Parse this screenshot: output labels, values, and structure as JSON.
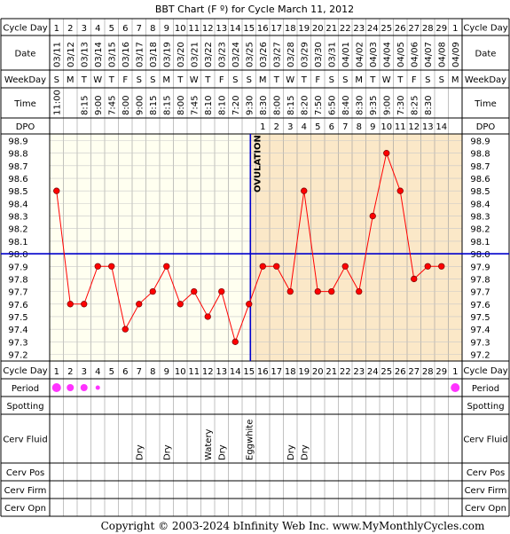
{
  "title": "BBT Chart (F º) for Cycle March 11, 2012",
  "footer": "Copyright © 2003-2024 bInfinity Web Inc.     www.MyMonthlyCycles.com",
  "row_labels": {
    "cycle_day": "Cycle Day",
    "date": "Date",
    "weekday": "WeekDay",
    "time": "Time",
    "dpo": "DPO",
    "period": "Period",
    "spotting": "Spotting",
    "cerv_fluid": "Cerv Fluid",
    "cerv_pos": "Cerv Pos",
    "cerv_firm": "Cerv Firm",
    "cerv_opn": "Cerv Opn"
  },
  "ovulation_label": "OVULATION",
  "colors": {
    "line": "#ff0000",
    "coverline": "#0000cc",
    "ovulation_line": "#0000cc",
    "pre_ovulation_bg": "#fffff0",
    "post_ovulation_bg": "#fbe8c8",
    "period_dot": "#ff33ff",
    "border": "#000000"
  },
  "chart_data": {
    "type": "line",
    "title": "BBT Chart (F º) for Cycle March 11, 2012",
    "ylim": [
      97.2,
      98.9
    ],
    "y_ticks": [
      "98.9",
      "98.8",
      "98.7",
      "98.6",
      "98.5",
      "98.4",
      "98.3",
      "98.2",
      "98.1",
      "98.0",
      "97.9",
      "97.8",
      "97.7",
      "97.6",
      "97.5",
      "97.4",
      "97.3",
      "97.2"
    ],
    "coverline": 98.0,
    "ovulation_day": 15,
    "cycle_days": [
      "1",
      "2",
      "3",
      "4",
      "5",
      "6",
      "7",
      "8",
      "9",
      "10",
      "11",
      "12",
      "13",
      "14",
      "15",
      "16",
      "17",
      "18",
      "19",
      "20",
      "21",
      "22",
      "23",
      "24",
      "25",
      "26",
      "27",
      "28",
      "29",
      "1"
    ],
    "dates": [
      "03/11",
      "03/12",
      "03/13",
      "03/14",
      "03/15",
      "03/16",
      "03/17",
      "03/18",
      "03/19",
      "03/20",
      "03/21",
      "03/22",
      "03/23",
      "03/24",
      "03/25",
      "03/26",
      "03/27",
      "03/28",
      "03/29",
      "03/30",
      "03/31",
      "04/01",
      "04/02",
      "04/03",
      "04/04",
      "04/05",
      "04/06",
      "04/07",
      "04/08",
      "04/09"
    ],
    "weekdays": [
      "S",
      "M",
      "T",
      "W",
      "T",
      "F",
      "S",
      "S",
      "M",
      "T",
      "W",
      "T",
      "F",
      "S",
      "S",
      "M",
      "T",
      "W",
      "T",
      "F",
      "S",
      "S",
      "M",
      "T",
      "W",
      "T",
      "F",
      "S",
      "S",
      "M"
    ],
    "times": [
      "11:00",
      "",
      "8:15",
      "9:00",
      "7:45",
      "8:00",
      "9:00",
      "8:15",
      "8:15",
      "8:00",
      "7:45",
      "8:10",
      "8:10",
      "7:20",
      "9:30",
      "8:30",
      "8:00",
      "8:15",
      "8:20",
      "7:50",
      "6:50",
      "8:40",
      "8:30",
      "9:35",
      "9:00",
      "7:30",
      "8:25",
      "8:30",
      "",
      ""
    ],
    "dpo": [
      "",
      "",
      "",
      "",
      "",
      "",
      "",
      "",
      "",
      "",
      "",
      "",
      "",
      "",
      "",
      "1",
      "2",
      "3",
      "4",
      "5",
      "6",
      "7",
      "8",
      "9",
      "10",
      "11",
      "12",
      "13",
      "14",
      ""
    ],
    "temperatures": [
      98.5,
      97.6,
      97.6,
      97.9,
      97.9,
      97.4,
      97.6,
      97.7,
      97.9,
      97.6,
      97.7,
      97.5,
      97.7,
      97.3,
      97.6,
      97.9,
      97.9,
      97.7,
      98.5,
      97.7,
      97.7,
      97.9,
      97.7,
      98.3,
      98.8,
      98.5,
      97.8,
      97.9,
      97.9,
      null
    ],
    "period": [
      3,
      2,
      2,
      1,
      0,
      0,
      0,
      0,
      0,
      0,
      0,
      0,
      0,
      0,
      0,
      0,
      0,
      0,
      0,
      0,
      0,
      0,
      0,
      0,
      0,
      0,
      0,
      0,
      0,
      3
    ],
    "cerv_fluid": [
      "",
      "",
      "",
      "",
      "",
      "",
      "Dry",
      "",
      "Dry",
      "",
      "",
      "Watery",
      "Dry",
      "",
      "Eggwhite",
      "",
      "",
      "Dry",
      "Dry",
      "",
      "",
      "",
      "",
      "",
      "",
      "",
      "",
      "",
      "",
      ""
    ]
  }
}
